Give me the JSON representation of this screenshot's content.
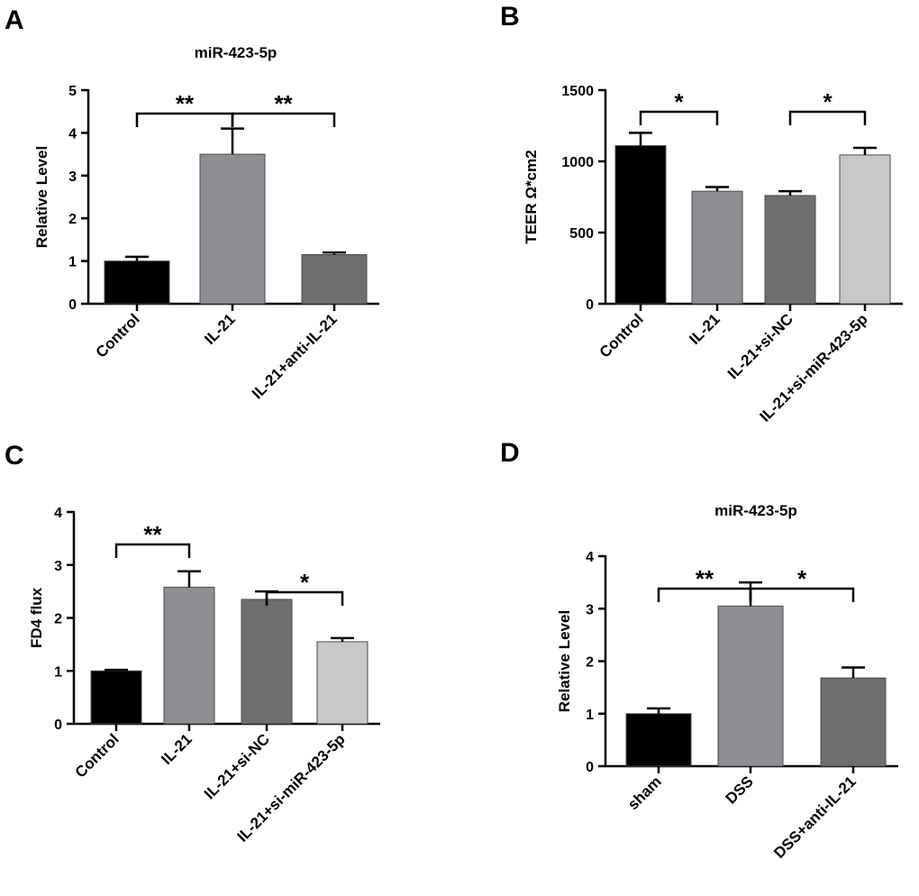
{
  "chart_data": [
    {
      "panel": "A",
      "type": "bar",
      "title": "miR-423-5p",
      "ylabel": "Relative Level",
      "ylim": [
        0,
        5
      ],
      "yticks": [
        "0",
        "1",
        "2",
        "3",
        "4",
        "5"
      ],
      "categories": [
        "Control",
        "IL-21",
        "IL-21+anti-IL-21"
      ],
      "values": [
        1.0,
        3.5,
        1.15
      ],
      "errors": [
        0.1,
        0.6,
        0.05
      ],
      "colors": [
        "#000000",
        "#8e8e94",
        "#6e6e6e"
      ],
      "significance": [
        {
          "from": 0,
          "to": 1,
          "label": "**"
        },
        {
          "from": 1,
          "to": 2,
          "label": "**"
        }
      ]
    },
    {
      "panel": "B",
      "type": "bar",
      "title": "",
      "ylabel": "TEER Ω*cm2",
      "ylim": [
        0,
        1500
      ],
      "yticks": [
        "0",
        "500",
        "1000",
        "1500"
      ],
      "categories": [
        "Control",
        "IL-21",
        "IL-21+si-NC",
        "IL-21+si-miR-423-5p"
      ],
      "values": [
        1110,
        790,
        760,
        1045
      ],
      "errors": [
        90,
        30,
        30,
        50
      ],
      "colors": [
        "#000000",
        "#8e8e94",
        "#6e6e6e",
        "#c8c8c8"
      ],
      "significance": [
        {
          "from": 0,
          "to": 1,
          "label": "*"
        },
        {
          "from": 2,
          "to": 3,
          "label": "*"
        }
      ]
    },
    {
      "panel": "C",
      "type": "bar",
      "title": "",
      "ylabel": "FD4 flux",
      "ylim": [
        0,
        4
      ],
      "yticks": [
        "0",
        "1",
        "2",
        "3",
        "4"
      ],
      "categories": [
        "Control",
        "IL-21",
        "IL-21+si-NC",
        "IL-21+si-miR-423-5p"
      ],
      "values": [
        1.0,
        2.58,
        2.35,
        1.55
      ],
      "errors": [
        0.02,
        0.3,
        0.15,
        0.07
      ],
      "colors": [
        "#000000",
        "#8e8e94",
        "#6e6e6e",
        "#c8c8c8"
      ],
      "significance": [
        {
          "from": 0,
          "to": 1,
          "label": "**"
        },
        {
          "from": 2,
          "to": 3,
          "label": "*"
        }
      ]
    },
    {
      "panel": "D",
      "type": "bar",
      "title": "miR-423-5p",
      "ylabel": "Relative Level",
      "ylim": [
        0,
        4
      ],
      "yticks": [
        "0",
        "1",
        "2",
        "3",
        "4"
      ],
      "categories": [
        "sham",
        "DSS",
        "DSS+anti-IL-21"
      ],
      "values": [
        1.0,
        3.05,
        1.68
      ],
      "errors": [
        0.1,
        0.45,
        0.2
      ],
      "colors": [
        "#000000",
        "#8e8e94",
        "#6e6e6e"
      ],
      "significance": [
        {
          "from": 0,
          "to": 1,
          "label": "**"
        },
        {
          "from": 1,
          "to": 2,
          "label": "*"
        }
      ]
    }
  ]
}
